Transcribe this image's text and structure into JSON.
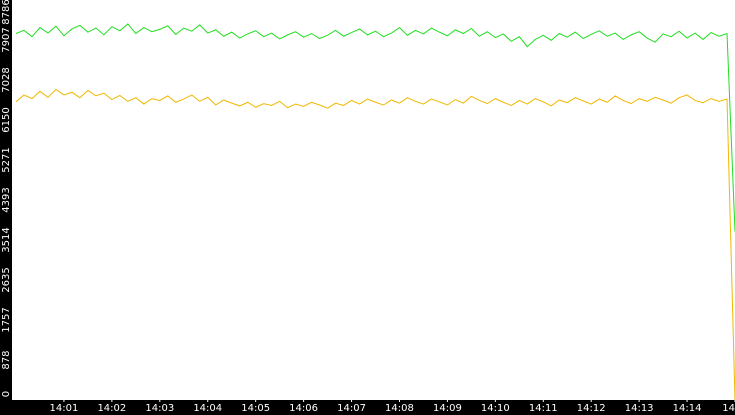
{
  "chart_data": {
    "type": "line",
    "categories": [
      null,
      null,
      null,
      null,
      null,
      null,
      "14:01",
      null,
      null,
      null,
      null,
      null,
      "14:02",
      null,
      null,
      null,
      null,
      null,
      "14:03",
      null,
      null,
      null,
      null,
      null,
      "14:04",
      null,
      null,
      null,
      null,
      null,
      "14:05",
      null,
      null,
      null,
      null,
      null,
      "14:06",
      null,
      null,
      null,
      null,
      null,
      "14:07",
      null,
      null,
      null,
      null,
      null,
      "14:08",
      null,
      null,
      null,
      null,
      null,
      "14:09",
      null,
      null,
      null,
      null,
      null,
      "14:10",
      null,
      null,
      null,
      null,
      null,
      "14:11",
      null,
      null,
      null,
      null,
      null,
      "14:12",
      null,
      null,
      null,
      null,
      null,
      "14:13",
      null,
      null,
      null,
      null,
      null,
      "14:14",
      null,
      null,
      null,
      null,
      null,
      "14"
    ],
    "series": [
      {
        "color": "#22dd22",
        "values": [
          8050,
          8120,
          7980,
          8180,
          8060,
          8210,
          8000,
          8150,
          8230,
          8080,
          8170,
          8020,
          8200,
          8110,
          8260,
          8050,
          8180,
          8090,
          8140,
          8220,
          8030,
          8170,
          8100,
          8240,
          8060,
          8130,
          7990,
          8080,
          7950,
          8040,
          8110,
          7980,
          8060,
          7930,
          8020,
          8090,
          7970,
          8050,
          7940,
          8010,
          8120,
          7990,
          8070,
          8150,
          8020,
          8100,
          7980,
          8060,
          8180,
          8010,
          8120,
          8040,
          8170,
          8080,
          8000,
          8130,
          8050,
          8160,
          7990,
          8090,
          7960,
          8040,
          7880,
          7980,
          7760,
          7920,
          8010,
          7900,
          8050,
          7970,
          8080,
          7940,
          8030,
          8110,
          7990,
          8060,
          7920,
          8020,
          8090,
          7950,
          7860,
          8040,
          7980,
          8100,
          7950,
          8060,
          7920,
          8070,
          7990,
          8050,
          3700
        ]
      },
      {
        "color": "#f0b800",
        "values": [
          6550,
          6700,
          6620,
          6780,
          6650,
          6820,
          6700,
          6760,
          6640,
          6800,
          6680,
          6740,
          6600,
          6690,
          6560,
          6640,
          6500,
          6620,
          6580,
          6680,
          6540,
          6610,
          6700,
          6560,
          6650,
          6480,
          6590,
          6520,
          6460,
          6540,
          6430,
          6510,
          6470,
          6560,
          6420,
          6500,
          6450,
          6540,
          6480,
          6410,
          6520,
          6470,
          6580,
          6500,
          6610,
          6540,
          6480,
          6590,
          6520,
          6640,
          6560,
          6500,
          6610,
          6550,
          6480,
          6600,
          6520,
          6670,
          6580,
          6510,
          6620,
          6540,
          6470,
          6580,
          6500,
          6620,
          6550,
          6460,
          6590,
          6530,
          6640,
          6570,
          6500,
          6610,
          6540,
          6680,
          6580,
          6510,
          6620,
          6560,
          6650,
          6590,
          6520,
          6640,
          6700,
          6580,
          6530,
          6620,
          6560,
          6610,
          0
        ]
      }
    ],
    "ylim": [
      0,
      8786
    ],
    "yticks": [
      0,
      878,
      1757,
      2635,
      3514,
      4393,
      5271,
      6150,
      7028,
      7907,
      8786
    ]
  }
}
